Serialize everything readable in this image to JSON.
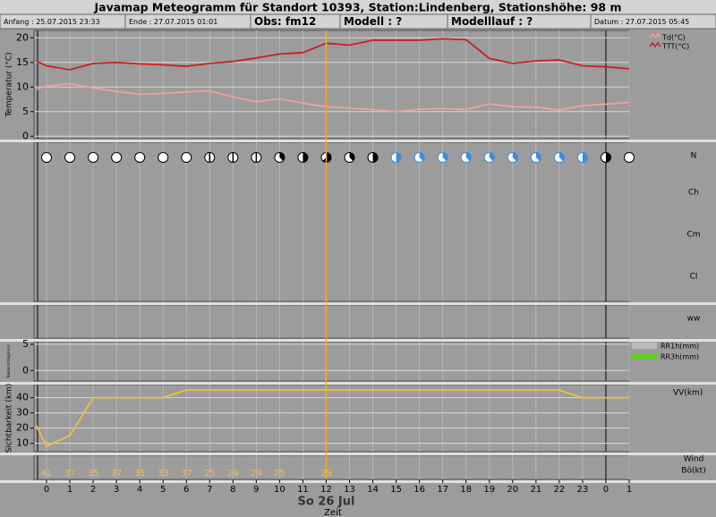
{
  "header": {
    "title": "Javamap Meteogramm für Standort 10393, Station:Lindenberg, Stationshöhe: 98 m",
    "info": [
      "Anfang : 25.07.2015 23:33",
      "Ende : 27.07.2015 01:01",
      "Obs: fm12",
      "Modell : ?",
      "Modelllauf : ?",
      "Datum : 27.07.2015 05:45"
    ]
  },
  "hours": [
    0,
    1,
    2,
    3,
    4,
    5,
    6,
    7,
    8,
    9,
    10,
    11,
    12,
    13,
    14,
    15,
    16,
    17,
    18,
    19,
    20,
    21,
    22,
    23,
    0,
    1
  ],
  "date_label": "So 26 Jul",
  "x_label": "Zeit",
  "temperature": {
    "ylabel": "Temperatur (°C)",
    "ylim": [
      -0.5,
      21.5
    ],
    "yticks": [
      0,
      5,
      10,
      15,
      20
    ],
    "x": [
      -0.45,
      0,
      1,
      2,
      3,
      4,
      5,
      6,
      7,
      8,
      9,
      10,
      11,
      12,
      13,
      14,
      15,
      16,
      17,
      18,
      19,
      20,
      21,
      22,
      23,
      24,
      25
    ],
    "series": [
      {
        "name": "Td(°C)",
        "color": "#f0a0a0",
        "values": [
          9.5,
          10.2,
          10.7,
          9.8,
          9.1,
          8.5,
          8.7,
          9,
          9.2,
          8,
          7,
          7.6,
          6.7,
          6,
          5.7,
          5.4,
          5,
          5.5,
          5.6,
          5.4,
          6.6,
          6,
          5.9,
          5.3,
          6.2,
          6.5,
          6.9
        ]
      },
      {
        "name": "TTT(°C)",
        "color": "#cc1f1f",
        "values": [
          15.3,
          14.3,
          13.5,
          14.8,
          15,
          14.7,
          14.5,
          14.2,
          14.8,
          15.2,
          15.9,
          16.7,
          17,
          18.9,
          18.5,
          19.5,
          19.5,
          19.5,
          19.8,
          19.6,
          15.8,
          14.8,
          15.3,
          15.5,
          14.3,
          14.1,
          13.7
        ]
      }
    ]
  },
  "clouds": {
    "rows": [
      "N",
      "Ch",
      "Cm",
      "Cl"
    ],
    "N": [
      0,
      0,
      0,
      0,
      0,
      0,
      0,
      1,
      1,
      1,
      3,
      4,
      5,
      3,
      4,
      4,
      3,
      3,
      3,
      3,
      3,
      3,
      3,
      4,
      4,
      0
    ],
    "colors": [
      "#000",
      "#000",
      "#000",
      "#000",
      "#000",
      "#000",
      "#000",
      "#000",
      "#000",
      "#000",
      "#000",
      "#000",
      "#000",
      "#000",
      "#000",
      "#3a8ee0",
      "#3a8ee0",
      "#3a8ee0",
      "#3a8ee0",
      "#3a8ee0",
      "#3a8ee0",
      "#3a8ee0",
      "#3a8ee0",
      "#3a8ee0",
      "#000",
      "#000"
    ]
  },
  "ww": {
    "label": "ww"
  },
  "precip": {
    "ylabel": "Niederschlag(mm)",
    "ylim": [
      -2,
      5.5
    ],
    "yticks": [
      0,
      5
    ],
    "legend": [
      {
        "name": "RR1h(mm)",
        "color": "#bbbbbb"
      },
      {
        "name": "RR3h(mm)",
        "color": "#66cc22"
      }
    ]
  },
  "visibility": {
    "ylabel": "Sichtbarkeit (km)",
    "name": "VV(km)",
    "color": "#f0c040",
    "ylim": [
      4.5,
      48.6
    ],
    "yticks": [
      10,
      20,
      30,
      40
    ],
    "x": [
      -0.45,
      0,
      1,
      2,
      3,
      4,
      5,
      6,
      7,
      8,
      9,
      10,
      11,
      12,
      13,
      14,
      15,
      16,
      17,
      18,
      19,
      20,
      21,
      22,
      23,
      24,
      25
    ],
    "values": [
      22,
      8,
      15,
      40,
      40,
      40,
      40,
      45,
      45,
      45,
      45,
      45,
      45,
      45,
      45,
      45,
      45,
      45,
      45,
      45,
      45,
      45,
      45,
      45,
      40,
      40,
      40
    ]
  },
  "wind": {
    "labels": [
      "Wind",
      "Bö(kt)"
    ],
    "hours": [
      0,
      1,
      2,
      3,
      4,
      5,
      6,
      7,
      8,
      9,
      10,
      12
    ],
    "gusts": [
      41,
      37,
      35,
      37,
      31,
      33,
      37,
      25,
      29,
      29,
      25,
      29
    ]
  }
}
